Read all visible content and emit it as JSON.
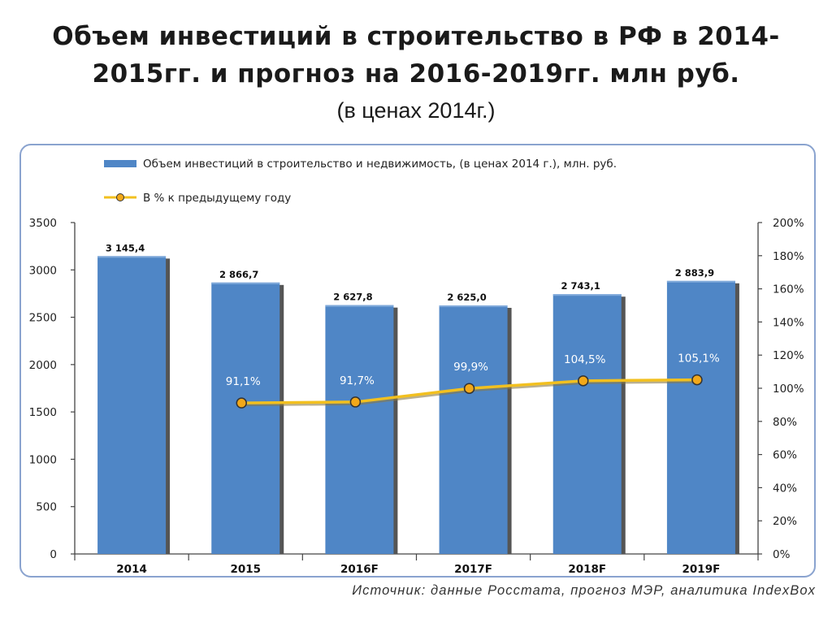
{
  "title": {
    "line1": "Объем инвестиций в строительство в РФ в 2014-",
    "line2": "2015гг. и прогноз на 2016-2019гг. млн руб.",
    "subtitle": "(в ценах 2014г.)"
  },
  "source": "Источник: данные Росстата, прогноз МЭР, аналитика IndexBox",
  "colors": {
    "bar": "#4f86c6",
    "bar_shadow": "#555555",
    "line": "#f2c01f",
    "marker": "#f2a81a"
  },
  "chart_data": {
    "type": "bar",
    "categories": [
      "2014",
      "2015",
      "2016F",
      "2017F",
      "2018F",
      "2019F"
    ],
    "series": [
      {
        "name": "Объем инвестиций в строительство и недвижимость, (в ценах 2014 г.), млн. руб.",
        "type": "bar",
        "axis": "left",
        "values": [
          3145.4,
          2866.7,
          2627.8,
          2625.0,
          2743.1,
          2883.9
        ],
        "labels": [
          "3 145,4",
          "2 866,7",
          "2 627,8",
          "2 625,0",
          "2 743,1",
          "2 883,9"
        ]
      },
      {
        "name": "В % к предыдущему году",
        "type": "line",
        "axis": "right",
        "values": [
          null,
          91.1,
          91.7,
          99.9,
          104.5,
          105.1
        ],
        "labels": [
          "",
          "91,1%",
          "91,7%",
          "99,9%",
          "104,5%",
          "105,1%"
        ]
      }
    ],
    "y_left": {
      "min": 0,
      "max": 3500,
      "ticks": [
        "0",
        "500",
        "1000",
        "1500",
        "2000",
        "2500",
        "3000",
        "3500"
      ]
    },
    "y_right": {
      "min": 0,
      "max": 200,
      "ticks": [
        "0%",
        "20%",
        "40%",
        "60%",
        "80%",
        "100%",
        "120%",
        "140%",
        "160%",
        "180%",
        "200%"
      ]
    },
    "legend": "top-left",
    "grid": false
  }
}
